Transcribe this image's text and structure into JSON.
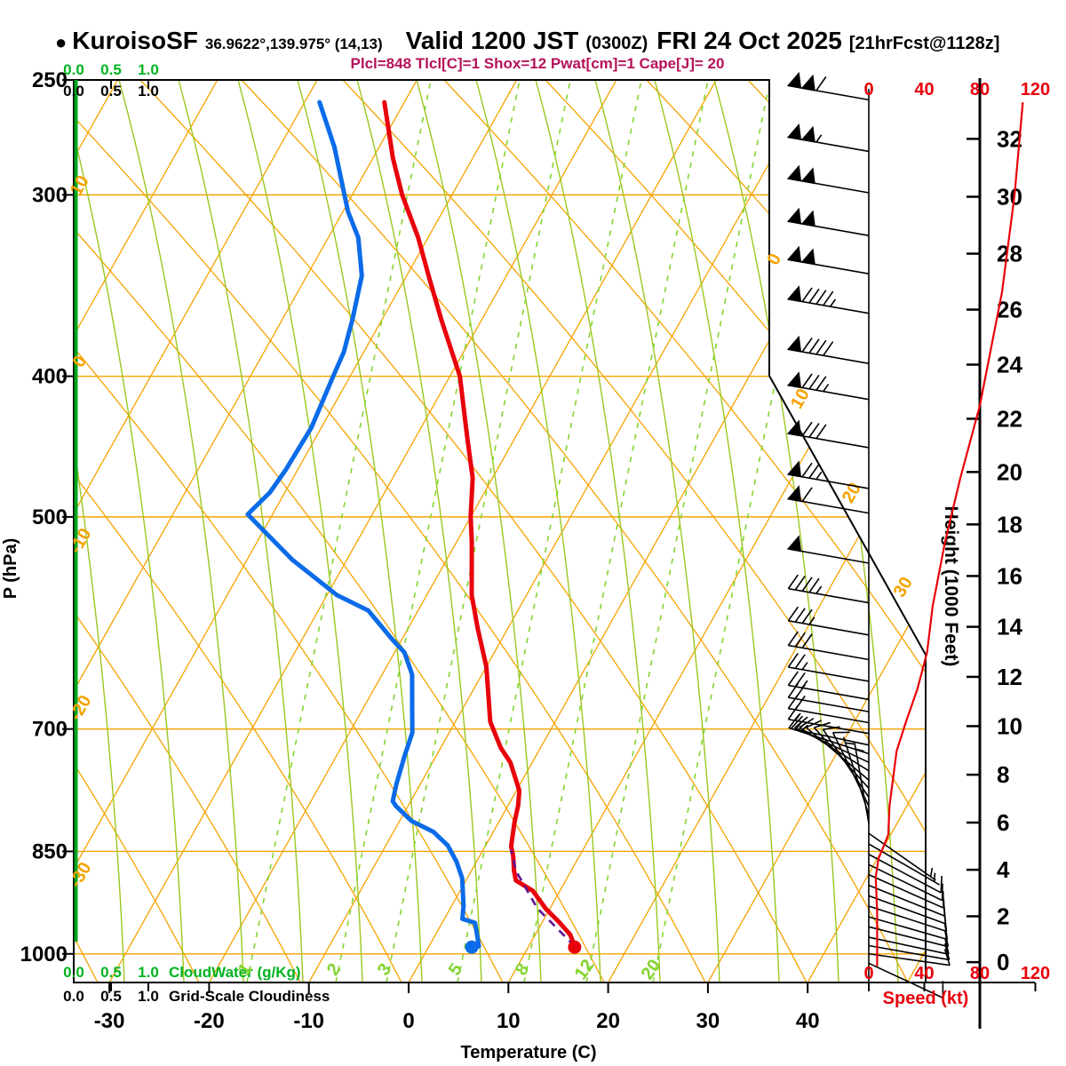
{
  "header": {
    "bullet": "●",
    "station": "KuroisoSF",
    "coords": "36.9622°,139.975° (14,13)",
    "valid": "Valid 1200 JST",
    "valid_z": "(0300Z)",
    "date": "FRI 24 Oct 2025",
    "fcst": "[21hrFcst@1128z]",
    "params": "Plcl=848 Tlcl[C]=1 Shox=12 Pwat[cm]=1 Cape[J]= 20"
  },
  "axes": {
    "pressure_title": "P (hPa)",
    "temperature_title": "Temperature (C)",
    "height_title": "Height (1000 Feet)",
    "speed_title": "Speed (kt)",
    "cloudwater_title": "CloudWater (g/Kg)",
    "cloudiness_title": "Grid-Scale Cloudiness"
  },
  "colors": {
    "orange": "#F5A300",
    "moist_green": "#9BC71F",
    "mixing_green": "#84D430",
    "border_green": "#00A51B",
    "cloud_green": "#00B41F",
    "red": "#E8000B",
    "blue": "#0B6BE8",
    "purple": "#5E1390",
    "crimson": "#B5125A",
    "black": "#000000"
  },
  "chart_data": {
    "type": "skew-t log-p sounding",
    "title": "KuroisoSF Valid 1200 JST (0300Z) FRI 24 Oct 2025",
    "pressure_ticks_hpa": [
      250,
      300,
      400,
      500,
      700,
      850,
      1000
    ],
    "isobar_lines_hpa": [
      300,
      400,
      500,
      700,
      850,
      1000
    ],
    "pressure_range_hpa": [
      250,
      1050
    ],
    "temperature_ticks_c": [
      -30,
      -20,
      -10,
      0,
      10,
      20,
      30,
      40
    ],
    "height_ticks_kft": [
      0,
      2,
      4,
      6,
      8,
      10,
      12,
      14,
      16,
      18,
      20,
      22,
      24,
      26,
      28,
      30,
      32
    ],
    "speed_ticks_kt": [
      0,
      40,
      80,
      120
    ],
    "cloud_scale": [
      "0.0",
      "0.5",
      "1.0"
    ],
    "dry_adiabat_labels_c": [
      10,
      0,
      -10,
      -20,
      -30
    ],
    "isotherm_edge_labels_c": [
      0,
      10,
      20,
      30
    ],
    "mixing_ratio_labels_gkg": [
      1,
      2,
      3,
      5,
      8,
      12,
      20
    ],
    "lcl_hpa": 848,
    "temperature_profile": [
      [
        259,
        -52
      ],
      [
        283,
        -48
      ],
      [
        300,
        -45
      ],
      [
        321,
        -41
      ],
      [
        343,
        -37.5
      ],
      [
        366,
        -34
      ],
      [
        400,
        -29
      ],
      [
        439,
        -25
      ],
      [
        470,
        -22
      ],
      [
        500,
        -20
      ],
      [
        520,
        -18.5
      ],
      [
        566,
        -15.5
      ],
      [
        597,
        -13
      ],
      [
        634,
        -10
      ],
      [
        692,
        -6.5
      ],
      [
        721,
        -4
      ],
      [
        738,
        -2.2
      ],
      [
        761,
        -0.5
      ],
      [
        772,
        0.3
      ],
      [
        790,
        1.0
      ],
      [
        812,
        1.6
      ],
      [
        843,
        2.6
      ],
      [
        857,
        3.4
      ],
      [
        877,
        4.3
      ],
      [
        890,
        5.0
      ],
      [
        905,
        7.3
      ],
      [
        931,
        9.6
      ],
      [
        950,
        11.6
      ],
      [
        970,
        13.5
      ],
      [
        988,
        14.6
      ]
    ],
    "dewpoint_profile": [
      [
        259,
        -58.5
      ],
      [
        278,
        -54.5
      ],
      [
        308,
        -49.5
      ],
      [
        321,
        -47
      ],
      [
        341,
        -44.5
      ],
      [
        365,
        -43
      ],
      [
        385,
        -42
      ],
      [
        400,
        -41.7
      ],
      [
        434,
        -41
      ],
      [
        464,
        -41.2
      ],
      [
        481,
        -41.5
      ],
      [
        498,
        -42.5
      ],
      [
        535,
        -35.5
      ],
      [
        566,
        -29
      ],
      [
        580,
        -25
      ],
      [
        607,
        -21
      ],
      [
        620,
        -19
      ],
      [
        642,
        -17
      ],
      [
        679,
        -15
      ],
      [
        704,
        -13.7
      ],
      [
        729,
        -13.2
      ],
      [
        764,
        -12.4
      ],
      [
        785,
        -11.8
      ],
      [
        791,
        -11.2
      ],
      [
        810,
        -8.8
      ],
      [
        824,
        -6
      ],
      [
        842,
        -3.8
      ],
      [
        864,
        -2
      ],
      [
        887,
        -0.5
      ],
      [
        927,
        1.2
      ],
      [
        946,
        1.8
      ],
      [
        952,
        3.3
      ],
      [
        988,
        5
      ]
    ],
    "parcel_path": [
      [
        988,
        14.6
      ],
      [
        930,
        8.7
      ],
      [
        877,
        4.5
      ],
      [
        848,
        2.8
      ]
    ],
    "surface_points": {
      "pressure_hpa": 988,
      "temp_c": 14.6,
      "dewpoint_c": 5
    },
    "wind_speed_profile_kt": [
      [
        259,
        111
      ],
      [
        300,
        105
      ],
      [
        350,
        96
      ],
      [
        419,
        80
      ],
      [
        470,
        66
      ],
      [
        520,
        55
      ],
      [
        576,
        46
      ],
      [
        620,
        42
      ],
      [
        657,
        35
      ],
      [
        691,
        27
      ],
      [
        725,
        20
      ],
      [
        790,
        15
      ],
      [
        828,
        14
      ],
      [
        860,
        7
      ],
      [
        885,
        5
      ],
      [
        936,
        6
      ],
      [
        1020,
        6
      ]
    ],
    "wind_barbs": [
      [
        258,
        -170,
        110
      ],
      [
        280,
        -170,
        105
      ],
      [
        299,
        -170,
        100
      ],
      [
        320,
        -170,
        100
      ],
      [
        340,
        -170,
        100
      ],
      [
        362,
        -170,
        95
      ],
      [
        392,
        -170,
        90
      ],
      [
        415,
        -170,
        85
      ],
      [
        448,
        -170,
        80
      ],
      [
        478,
        -170,
        75
      ],
      [
        497,
        -170,
        60
      ],
      [
        538,
        -170,
        50
      ],
      [
        573,
        -170,
        45
      ],
      [
        603,
        -170,
        35
      ],
      [
        627,
        -170,
        30
      ],
      [
        649,
        -170,
        28
      ],
      [
        668,
        -170,
        25
      ],
      [
        681,
        -170,
        22
      ],
      [
        693,
        -170,
        20
      ],
      [
        705,
        -170,
        18
      ],
      [
        718,
        -168,
        15
      ],
      [
        728,
        -162,
        15
      ],
      [
        738,
        -155,
        15
      ],
      [
        748,
        -148,
        12
      ],
      [
        759,
        -140,
        12
      ],
      [
        769,
        -132,
        10
      ],
      [
        780,
        -124,
        10
      ],
      [
        791,
        -116,
        10
      ],
      [
        802,
        -108,
        8
      ],
      [
        813,
        -100,
        8
      ],
      [
        826,
        35,
        8
      ],
      [
        840,
        30,
        8
      ],
      [
        854,
        28,
        10
      ],
      [
        868,
        26,
        10
      ],
      [
        882,
        24,
        10
      ],
      [
        897,
        22,
        10
      ],
      [
        912,
        20,
        12
      ],
      [
        927,
        18,
        12
      ],
      [
        943,
        16,
        12
      ],
      [
        958,
        14,
        12
      ],
      [
        974,
        12,
        12
      ],
      [
        987,
        10,
        12
      ],
      [
        1000,
        8,
        12
      ],
      [
        1015,
        25,
        10
      ]
    ]
  }
}
